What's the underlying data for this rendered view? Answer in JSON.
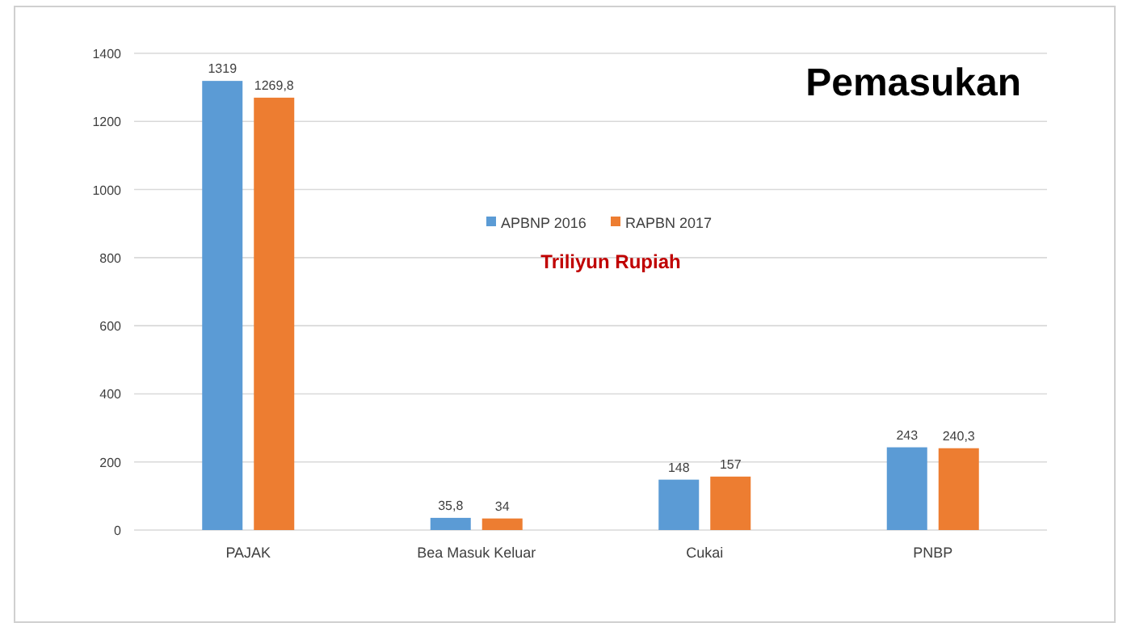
{
  "chart_data": {
    "type": "bar",
    "title": "Pemasukan",
    "subtitle": "Triliyun Rupiah",
    "categories": [
      "PAJAK",
      "Bea Masuk Keluar",
      "Cukai",
      "PNBP"
    ],
    "series": [
      {
        "name": "APBNP 2016",
        "color": "#5b9bd5",
        "values": [
          1319,
          35.8,
          148,
          243
        ],
        "value_labels": [
          "1319",
          "35,8",
          "148",
          "243"
        ]
      },
      {
        "name": "RAPBN 2017",
        "color": "#ed7d31",
        "values": [
          1269.8,
          34,
          157,
          240.3
        ],
        "value_labels": [
          "1269,8",
          "34",
          "157",
          "240,3"
        ]
      }
    ],
    "ylim": [
      0,
      1400
    ],
    "yticks": [
      0,
      200,
      400,
      600,
      800,
      1000,
      1200,
      1400
    ],
    "grid": "y",
    "legend": "top"
  }
}
